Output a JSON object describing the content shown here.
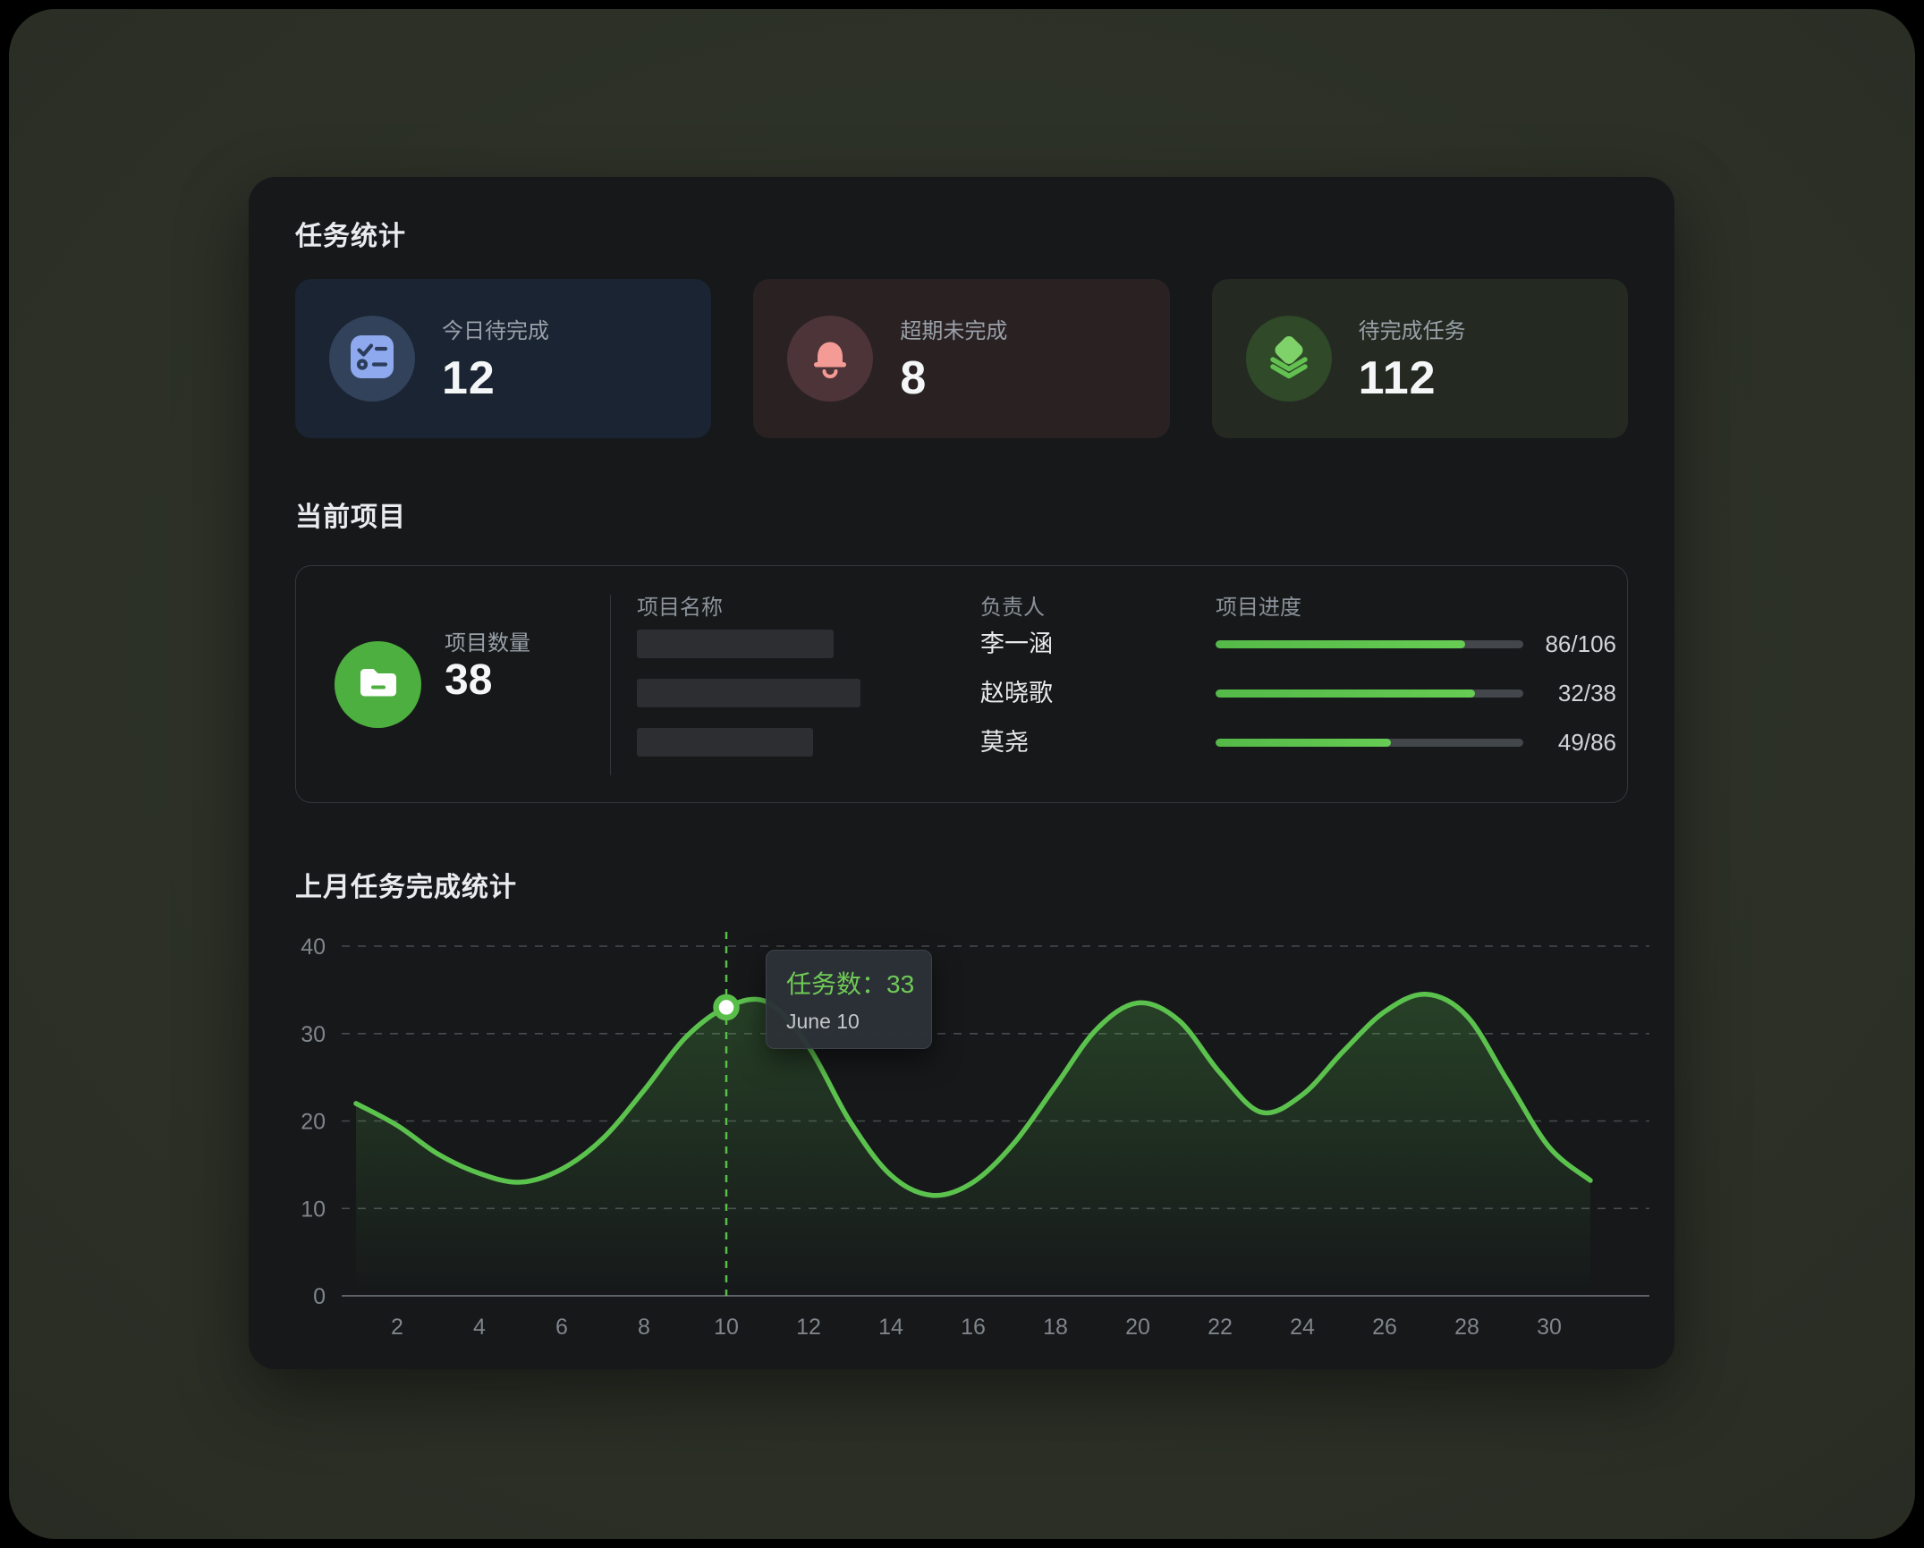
{
  "stats": {
    "section_title": "任务统计",
    "cards": [
      {
        "label": "今日待完成",
        "value": "12",
        "icon": "checklist-icon",
        "card_bg": "#1b2433",
        "circle_bg": "#32425b",
        "icon_color": "#8ea9ee"
      },
      {
        "label": "超期未完成",
        "value": "8",
        "icon": "bell-icon",
        "card_bg": "#2a2123",
        "circle_bg": "#4d3438",
        "icon_color": "#f39b94"
      },
      {
        "label": "待完成任务",
        "value": "112",
        "icon": "layers-icon",
        "card_bg": "#242a22",
        "circle_bg": "#2f4929",
        "icon_color": "#7fd269"
      }
    ]
  },
  "projects": {
    "section_title": "当前项目",
    "count_label": "项目数量",
    "count_value": "38",
    "count_icon": "folder-icon",
    "count_icon_bg": "#4daf3f",
    "columns": {
      "name": "项目名称",
      "owner": "负责人",
      "progress": "项目进度"
    },
    "rows": [
      {
        "owner": "李一涵",
        "done": 86,
        "total": 106,
        "progress_text": "86/106",
        "skeleton_width": 220
      },
      {
        "owner": "赵晓歌",
        "done": 32,
        "total": 38,
        "progress_text": "32/38",
        "skeleton_width": 250
      },
      {
        "owner": "莫尧",
        "done": 49,
        "total": 86,
        "progress_text": "49/86",
        "skeleton_width": 197
      }
    ]
  },
  "chart_data": {
    "type": "line",
    "title": "上月任务完成统计",
    "xlabel": "",
    "ylabel": "",
    "ylim": [
      0,
      40
    ],
    "y_ticks": [
      0,
      10,
      20,
      30,
      40
    ],
    "x_label_days": [
      2,
      4,
      6,
      8,
      10,
      12,
      14,
      16,
      18,
      20,
      22,
      24,
      26,
      28,
      30
    ],
    "days": [
      1,
      2,
      3,
      4,
      5,
      6,
      7,
      8,
      9,
      10,
      11,
      12,
      13,
      14,
      15,
      16,
      17,
      18,
      19,
      20,
      21,
      22,
      23,
      24,
      25,
      26,
      27,
      28,
      29,
      30,
      31
    ],
    "values": [
      22,
      19.5,
      16.2,
      14,
      13,
      14.5,
      18,
      23.5,
      29.5,
      33,
      33.6,
      28.5,
      20,
      13.8,
      11.5,
      13,
      17.5,
      24,
      30.5,
      33.5,
      31.5,
      25.5,
      21,
      23,
      28,
      32.5,
      34.5,
      32,
      24.5,
      17,
      13.2
    ],
    "grid": "dashed-horizontal",
    "legend": null,
    "line_color": "#5cc24e",
    "area_fill_color": "#5cc24e",
    "highlight": {
      "day": 10,
      "value": 33,
      "tooltip_label": "任务数：",
      "tooltip_value": "33",
      "tooltip_date": "June 10"
    }
  },
  "colors": {
    "page_background": "#2a2e25",
    "panel_background": "#16181a",
    "accent_green": "#5cc24e",
    "text_primary": "#f4f6f7",
    "text_secondary": "#99a0a8",
    "progress_track": "#43474b",
    "tooltip_background": "#2d3137"
  }
}
